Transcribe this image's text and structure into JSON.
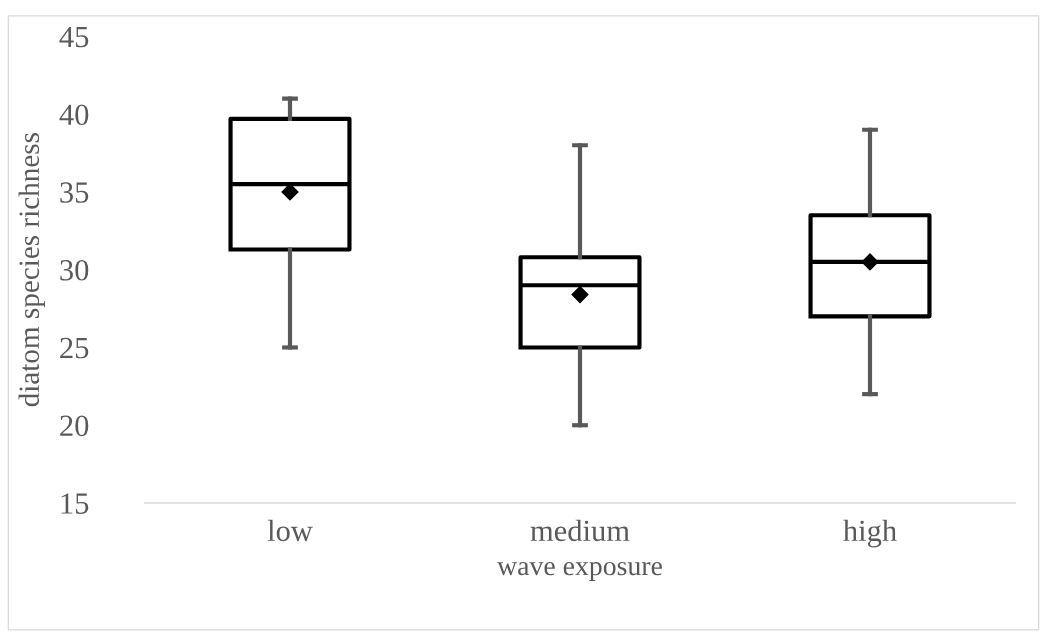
{
  "chart_data": {
    "type": "box",
    "xlabel": "wave exposure",
    "ylabel": "diatom species richness",
    "categories": [
      "low",
      "medium",
      "high"
    ],
    "boxes": [
      {
        "low": 25,
        "q1": 31.3,
        "median": 35.5,
        "q3": 39.7,
        "high": 41,
        "mean": 35
      },
      {
        "low": 20,
        "q1": 25,
        "median": 29,
        "q3": 30.8,
        "high": 38,
        "mean": 28.4
      },
      {
        "low": 22,
        "q1": 27,
        "median": 30.5,
        "q3": 33.5,
        "high": 39,
        "mean": 30.5
      }
    ],
    "color": "#000000",
    "marker": "diamond",
    "ylim": [
      15,
      45
    ],
    "yticks": [
      15,
      20,
      25,
      30,
      35,
      40,
      45
    ],
    "grid": false
  }
}
